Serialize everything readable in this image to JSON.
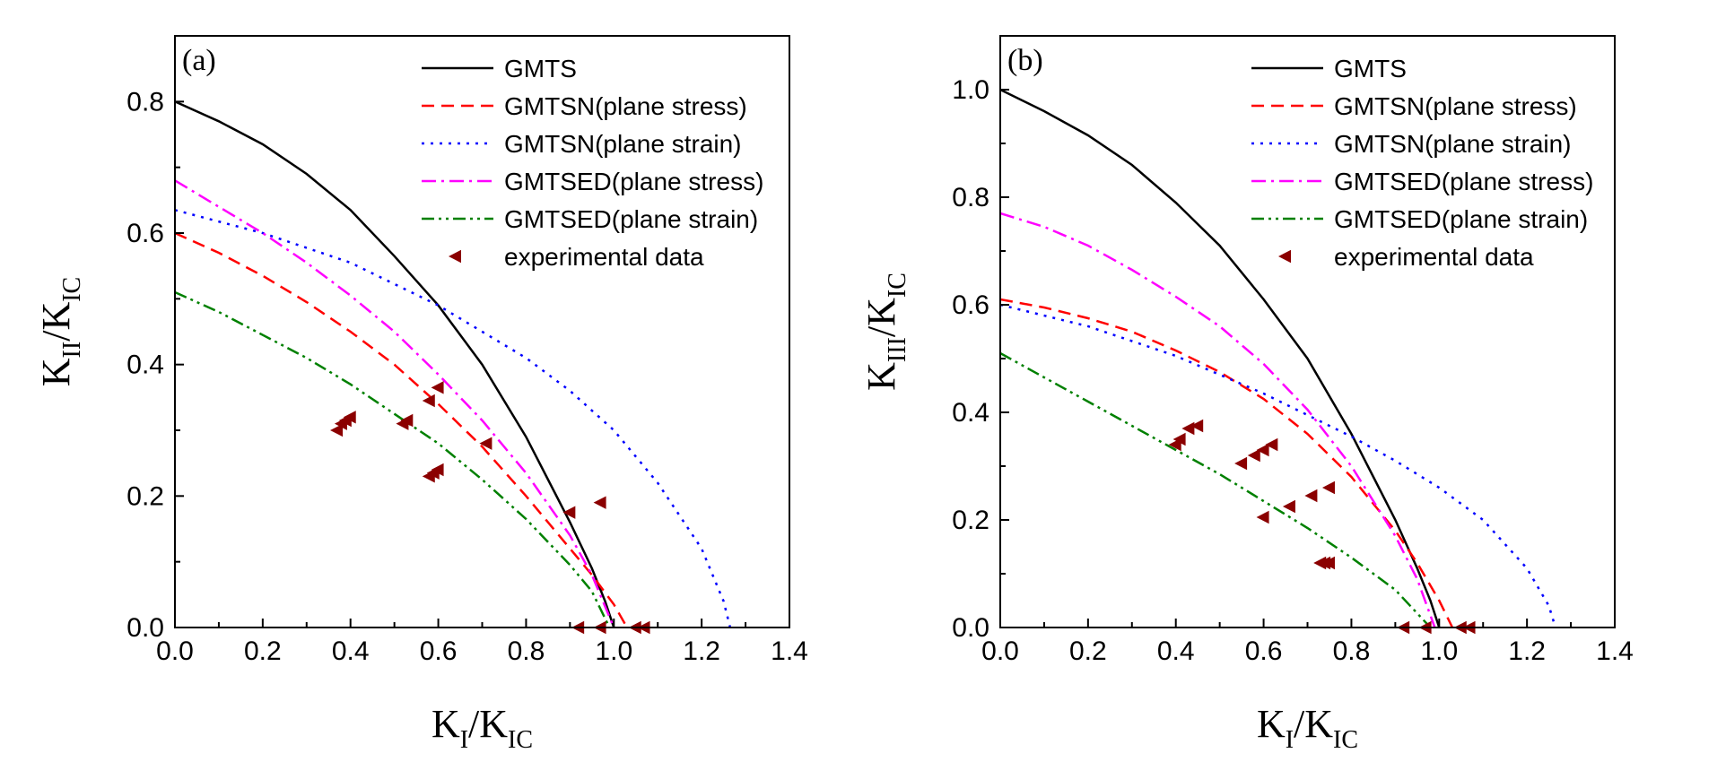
{
  "chart_data": [
    {
      "type": "line",
      "panel_label": "(a)",
      "xlabel": {
        "main": "K",
        "sub1": "I",
        "sep": "/K",
        "sub2": "IC"
      },
      "ylabel": {
        "main": "K",
        "sub1": "II",
        "sep": "/K",
        "sub2": "IC"
      },
      "xlim": [
        0.0,
        1.4
      ],
      "ylim": [
        0.0,
        0.9
      ],
      "xticks": [
        "0.0",
        "0.2",
        "0.4",
        "0.6",
        "0.8",
        "1.0",
        "1.2",
        "1.4"
      ],
      "yticks": [
        "0.0",
        "0.2",
        "0.4",
        "0.6",
        "0.8"
      ],
      "legend_position": "top-right",
      "series": [
        {
          "name": "GMTS",
          "color": "#000000",
          "dash": "solid",
          "x": [
            0.0,
            0.1,
            0.2,
            0.3,
            0.4,
            0.5,
            0.6,
            0.7,
            0.8,
            0.85,
            0.9,
            0.95,
            0.98,
            1.0
          ],
          "y": [
            0.8,
            0.77,
            0.735,
            0.69,
            0.635,
            0.565,
            0.49,
            0.4,
            0.29,
            0.225,
            0.16,
            0.09,
            0.04,
            0.0
          ]
        },
        {
          "name": "GMTSN(plane stress)",
          "color": "#ff0000",
          "dash": "dashed",
          "x": [
            0.0,
            0.1,
            0.2,
            0.3,
            0.4,
            0.5,
            0.6,
            0.7,
            0.8,
            0.9,
            0.95,
            1.0,
            1.03
          ],
          "y": [
            0.6,
            0.57,
            0.535,
            0.495,
            0.45,
            0.4,
            0.34,
            0.275,
            0.2,
            0.12,
            0.08,
            0.035,
            0.0
          ]
        },
        {
          "name": "GMTSN(plane strain)",
          "color": "#0000ff",
          "dash": "dotted",
          "x": [
            0.0,
            0.2,
            0.4,
            0.6,
            0.8,
            0.9,
            1.0,
            1.1,
            1.2,
            1.25,
            1.265
          ],
          "y": [
            0.635,
            0.6,
            0.555,
            0.49,
            0.41,
            0.36,
            0.3,
            0.22,
            0.12,
            0.04,
            0.0
          ]
        },
        {
          "name": "GMTSED(plane stress)",
          "color": "#ff00ff",
          "dash": "dashdot",
          "x": [
            0.0,
            0.1,
            0.2,
            0.3,
            0.4,
            0.5,
            0.6,
            0.7,
            0.8,
            0.9,
            0.95,
            1.0
          ],
          "y": [
            0.68,
            0.64,
            0.6,
            0.555,
            0.505,
            0.45,
            0.385,
            0.315,
            0.235,
            0.14,
            0.08,
            0.0
          ]
        },
        {
          "name": "GMTSED(plane strain)",
          "color": "#008000",
          "dash": "dashdotdot",
          "x": [
            0.0,
            0.1,
            0.2,
            0.3,
            0.4,
            0.5,
            0.6,
            0.7,
            0.8,
            0.9,
            0.95,
            0.99
          ],
          "y": [
            0.51,
            0.48,
            0.445,
            0.41,
            0.37,
            0.325,
            0.28,
            0.225,
            0.165,
            0.095,
            0.055,
            0.0
          ]
        }
      ],
      "scatter": {
        "name": "experimental data",
        "color": "#8b0000",
        "x": [
          0.37,
          0.38,
          0.39,
          0.4,
          0.52,
          0.53,
          0.58,
          0.6,
          0.58,
          0.59,
          0.6,
          0.71,
          0.9,
          0.97,
          0.92,
          0.97,
          1.05,
          1.07
        ],
        "y": [
          0.3,
          0.31,
          0.315,
          0.32,
          0.31,
          0.315,
          0.345,
          0.365,
          0.23,
          0.235,
          0.24,
          0.28,
          0.175,
          0.19,
          0.0,
          0.0,
          0.0,
          0.0
        ]
      }
    },
    {
      "type": "line",
      "panel_label": "(b)",
      "xlabel": {
        "main": "K",
        "sub1": "I",
        "sep": "/K",
        "sub2": "IC"
      },
      "ylabel": {
        "main": "K",
        "sub1": "III",
        "sep": "/K",
        "sub2": "IC"
      },
      "xlim": [
        0.0,
        1.4
      ],
      "ylim": [
        0.0,
        1.1
      ],
      "xticks": [
        "0.0",
        "0.2",
        "0.4",
        "0.6",
        "0.8",
        "1.0",
        "1.2",
        "1.4"
      ],
      "yticks": [
        "0.0",
        "0.2",
        "0.4",
        "0.6",
        "0.8",
        "1.0"
      ],
      "legend_position": "top-right",
      "series": [
        {
          "name": "GMTS",
          "color": "#000000",
          "dash": "solid",
          "x": [
            0.0,
            0.1,
            0.2,
            0.3,
            0.4,
            0.5,
            0.6,
            0.7,
            0.8,
            0.85,
            0.9,
            0.95,
            0.98,
            1.0
          ],
          "y": [
            1.0,
            0.96,
            0.915,
            0.86,
            0.79,
            0.71,
            0.61,
            0.5,
            0.36,
            0.28,
            0.2,
            0.11,
            0.05,
            0.0
          ]
        },
        {
          "name": "GMTSN(plane stress)",
          "color": "#ff0000",
          "dash": "dashed",
          "x": [
            0.0,
            0.1,
            0.2,
            0.3,
            0.4,
            0.5,
            0.6,
            0.7,
            0.8,
            0.9,
            0.95,
            1.0,
            1.03
          ],
          "y": [
            0.61,
            0.595,
            0.575,
            0.55,
            0.515,
            0.475,
            0.425,
            0.36,
            0.28,
            0.18,
            0.12,
            0.05,
            0.0
          ]
        },
        {
          "name": "GMTSN(plane strain)",
          "color": "#0000ff",
          "dash": "dotted",
          "x": [
            0.0,
            0.2,
            0.4,
            0.6,
            0.8,
            0.9,
            1.0,
            1.1,
            1.2,
            1.25,
            1.265
          ],
          "y": [
            0.6,
            0.56,
            0.505,
            0.435,
            0.355,
            0.31,
            0.26,
            0.2,
            0.11,
            0.04,
            0.0
          ]
        },
        {
          "name": "GMTSED(plane stress)",
          "color": "#ff00ff",
          "dash": "dashdot",
          "x": [
            0.0,
            0.1,
            0.2,
            0.3,
            0.4,
            0.5,
            0.6,
            0.7,
            0.8,
            0.9,
            0.95,
            0.99
          ],
          "y": [
            0.77,
            0.745,
            0.71,
            0.665,
            0.615,
            0.56,
            0.49,
            0.405,
            0.3,
            0.17,
            0.09,
            0.0
          ]
        },
        {
          "name": "GMTSED(plane strain)",
          "color": "#008000",
          "dash": "dashdotdot",
          "x": [
            0.0,
            0.1,
            0.2,
            0.3,
            0.4,
            0.5,
            0.6,
            0.7,
            0.8,
            0.9,
            0.98
          ],
          "y": [
            0.51,
            0.465,
            0.42,
            0.375,
            0.33,
            0.285,
            0.235,
            0.185,
            0.13,
            0.07,
            0.0
          ]
        }
      ],
      "scatter": {
        "name": "experimental data",
        "color": "#8b0000",
        "x": [
          0.4,
          0.41,
          0.43,
          0.45,
          0.55,
          0.58,
          0.6,
          0.62,
          0.6,
          0.66,
          0.71,
          0.75,
          0.73,
          0.74,
          0.75,
          0.92,
          0.97,
          1.05,
          1.07
        ],
        "y": [
          0.34,
          0.35,
          0.37,
          0.375,
          0.305,
          0.32,
          0.33,
          0.34,
          0.205,
          0.225,
          0.245,
          0.26,
          0.12,
          0.12,
          0.12,
          0.0,
          0.0,
          0.0,
          0.0
        ]
      }
    }
  ]
}
